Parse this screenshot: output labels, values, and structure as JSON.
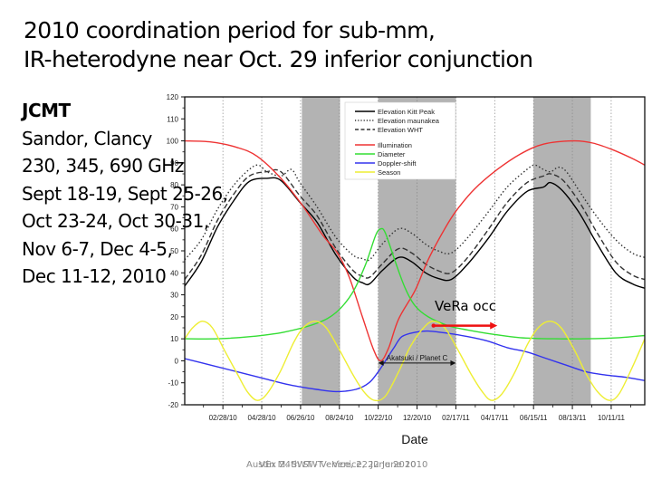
{
  "slide": {
    "title_lines": [
      "2010 coordination period for sub-mm,",
      "IR-heterodyne near Oct. 29 inferior conjunction"
    ],
    "side_text": {
      "heading": "JCMT",
      "lines": [
        "Sandor, Clancy",
        "230, 345, 690 GHz",
        "Sept 18-19, Sept 25-26,",
        "Oct 23-24, Oct 30-31,",
        "Nov 6-7, Dec 4-5,",
        "Dec 11-12, 2010"
      ]
    },
    "footer_texts": [
      "Austin M. SWT - Venice, 22 June 2010",
      "VEx 24th SWT - Venice, 22 June 2010"
    ]
  },
  "chart_data": {
    "type": "line",
    "title": "",
    "xlabel": "Date",
    "ylabel": "",
    "x_units": "days since 01/01/10",
    "xlim": [
      0,
      699
    ],
    "ylim": [
      -20,
      120
    ],
    "y_ticks": [
      -20,
      -10,
      0,
      10,
      20,
      30,
      40,
      50,
      60,
      70,
      80,
      90,
      100,
      110,
      120
    ],
    "x_ticks": [
      {
        "x": 58,
        "label": "02/28/10"
      },
      {
        "x": 117,
        "label": "04/28/10"
      },
      {
        "x": 176,
        "label": "06/26/10"
      },
      {
        "x": 235,
        "label": "08/24/10"
      },
      {
        "x": 294,
        "label": "10/22/10"
      },
      {
        "x": 353,
        "label": "12/20/10"
      },
      {
        "x": 412,
        "label": "02/17/11"
      },
      {
        "x": 471,
        "label": "04/17/11"
      },
      {
        "x": 530,
        "label": "06/15/11"
      },
      {
        "x": 589,
        "label": "08/13/11"
      },
      {
        "x": 648,
        "label": "10/11/11"
      }
    ],
    "grid": "dotted vertical at major ticks",
    "shaded_periods": [
      [
        178,
        236
      ],
      [
        294,
        412
      ],
      [
        530,
        617
      ]
    ],
    "legend_position": "top-center",
    "legend_title_groups": [
      [
        "Elevation Kitt Peak",
        "Elevation maunakea",
        "Elevation WHT"
      ],
      [
        "Illumination",
        "Diameter",
        "Doppler-shift",
        "Season"
      ]
    ],
    "series": [
      {
        "name": "Elevation Kitt Peak",
        "color": "#000000",
        "style": "solid",
        "points": [
          [
            0,
            34
          ],
          [
            25,
            45
          ],
          [
            50,
            61
          ],
          [
            75,
            73
          ],
          [
            98,
            81.5
          ],
          [
            125,
            83
          ],
          [
            146,
            82
          ],
          [
            175,
            72
          ],
          [
            201,
            63
          ],
          [
            230,
            48
          ],
          [
            256,
            38
          ],
          [
            270,
            35.5
          ],
          [
            281,
            35
          ],
          [
            300,
            41
          ],
          [
            325,
            47
          ],
          [
            345,
            45
          ],
          [
            366,
            40
          ],
          [
            385,
            37.5
          ],
          [
            405,
            37
          ],
          [
            430,
            44
          ],
          [
            462,
            56
          ],
          [
            490,
            68
          ],
          [
            520,
            77
          ],
          [
            545,
            79
          ],
          [
            556,
            81
          ],
          [
            575,
            77
          ],
          [
            600,
            67
          ],
          [
            625,
            54
          ],
          [
            655,
            40
          ],
          [
            680,
            35
          ],
          [
            699,
            33
          ]
        ]
      },
      {
        "name": "Elevation maunakea",
        "color": "#333333",
        "style": "dotted",
        "points": [
          [
            0,
            46
          ],
          [
            25,
            55
          ],
          [
            50,
            69
          ],
          [
            75,
            80
          ],
          [
            98,
            87
          ],
          [
            112,
            89
          ],
          [
            125,
            86
          ],
          [
            146,
            84
          ],
          [
            162,
            87
          ],
          [
            175,
            81
          ],
          [
            201,
            70
          ],
          [
            230,
            56
          ],
          [
            256,
            48
          ],
          [
            270,
            46.5
          ],
          [
            281,
            46
          ],
          [
            300,
            53
          ],
          [
            325,
            60
          ],
          [
            345,
            58
          ],
          [
            366,
            53
          ],
          [
            385,
            50
          ],
          [
            405,
            49
          ],
          [
            430,
            56
          ],
          [
            462,
            68
          ],
          [
            490,
            79
          ],
          [
            520,
            87
          ],
          [
            532,
            89
          ],
          [
            545,
            87
          ],
          [
            556,
            86
          ],
          [
            568,
            88
          ],
          [
            580,
            86
          ],
          [
            600,
            77
          ],
          [
            625,
            66
          ],
          [
            655,
            55
          ],
          [
            680,
            49
          ],
          [
            699,
            47
          ]
        ]
      },
      {
        "name": "Elevation WHT",
        "color": "#333333",
        "style": "dashed",
        "points": [
          [
            0,
            37
          ],
          [
            25,
            48
          ],
          [
            50,
            64
          ],
          [
            75,
            76
          ],
          [
            98,
            84
          ],
          [
            125,
            86
          ],
          [
            146,
            86
          ],
          [
            175,
            75
          ],
          [
            201,
            66
          ],
          [
            230,
            51
          ],
          [
            256,
            41
          ],
          [
            270,
            38.5
          ],
          [
            281,
            38
          ],
          [
            300,
            44
          ],
          [
            325,
            51
          ],
          [
            345,
            49
          ],
          [
            366,
            44
          ],
          [
            385,
            41
          ],
          [
            405,
            40
          ],
          [
            430,
            47
          ],
          [
            462,
            60
          ],
          [
            490,
            72
          ],
          [
            520,
            81
          ],
          [
            545,
            84
          ],
          [
            556,
            85
          ],
          [
            575,
            82
          ],
          [
            600,
            72
          ],
          [
            625,
            59
          ],
          [
            655,
            45
          ],
          [
            680,
            39
          ],
          [
            699,
            37
          ]
        ]
      },
      {
        "name": "Illumination",
        "color": "#ee3333",
        "style": "solid",
        "points": [
          [
            0,
            100
          ],
          [
            40,
            99.5
          ],
          [
            80,
            97
          ],
          [
            110,
            93
          ],
          [
            146,
            83
          ],
          [
            178,
            71
          ],
          [
            210,
            57
          ],
          [
            232,
            49
          ],
          [
            250,
            38
          ],
          [
            270,
            20
          ],
          [
            287,
            5
          ],
          [
            298,
            0
          ],
          [
            310,
            6
          ],
          [
            325,
            19
          ],
          [
            350,
            32
          ],
          [
            370,
            46
          ],
          [
            395,
            60
          ],
          [
            412,
            68
          ],
          [
            440,
            78
          ],
          [
            475,
            87
          ],
          [
            510,
            94
          ],
          [
            545,
            98.5
          ],
          [
            590,
            100
          ],
          [
            620,
            99
          ],
          [
            650,
            96
          ],
          [
            680,
            92
          ],
          [
            699,
            89
          ]
        ]
      },
      {
        "name": "Diameter",
        "color": "#33dd33",
        "style": "solid",
        "points": [
          [
            0,
            10
          ],
          [
            50,
            10
          ],
          [
            100,
            11
          ],
          [
            150,
            13
          ],
          [
            200,
            17
          ],
          [
            230,
            22
          ],
          [
            255,
            31
          ],
          [
            275,
            44
          ],
          [
            290,
            57
          ],
          [
            298,
            60
          ],
          [
            305,
            58
          ],
          [
            320,
            45
          ],
          [
            335,
            33
          ],
          [
            350,
            25
          ],
          [
            370,
            20
          ],
          [
            400,
            16
          ],
          [
            430,
            14
          ],
          [
            470,
            12
          ],
          [
            510,
            10.5
          ],
          [
            560,
            10
          ],
          [
            610,
            10
          ],
          [
            660,
            10.5
          ],
          [
            699,
            11.5
          ]
        ]
      },
      {
        "name": "Doppler-shift",
        "color": "#3333ee",
        "style": "solid",
        "points": [
          [
            0,
            1
          ],
          [
            40,
            -2
          ],
          [
            80,
            -5
          ],
          [
            120,
            -8
          ],
          [
            160,
            -11
          ],
          [
            200,
            -13
          ],
          [
            230,
            -14
          ],
          [
            260,
            -13
          ],
          [
            280,
            -10
          ],
          [
            294,
            -5
          ],
          [
            305,
            0
          ],
          [
            318,
            6
          ],
          [
            330,
            11
          ],
          [
            350,
            13
          ],
          [
            370,
            13.5
          ],
          [
            400,
            12.5
          ],
          [
            430,
            11
          ],
          [
            460,
            9
          ],
          [
            490,
            6
          ],
          [
            520,
            4
          ],
          [
            550,
            1
          ],
          [
            580,
            -2
          ],
          [
            610,
            -5
          ],
          [
            640,
            -6.5
          ],
          [
            670,
            -7.5
          ],
          [
            699,
            -9
          ]
        ]
      },
      {
        "name": "Season",
        "color": "#eeee33",
        "style": "solid",
        "points": [
          [
            0,
            10
          ],
          [
            12,
            15
          ],
          [
            27,
            18
          ],
          [
            42,
            15
          ],
          [
            60,
            5
          ],
          [
            80,
            -6
          ],
          [
            95,
            -14
          ],
          [
            110,
            -18
          ],
          [
            125,
            -15
          ],
          [
            145,
            -5
          ],
          [
            165,
            8
          ],
          [
            180,
            15
          ],
          [
            198,
            18
          ],
          [
            215,
            15
          ],
          [
            235,
            5
          ],
          [
            255,
            -6
          ],
          [
            272,
            -14
          ],
          [
            288,
            -18
          ],
          [
            305,
            -16
          ],
          [
            325,
            -5
          ],
          [
            342,
            6
          ],
          [
            360,
            14
          ],
          [
            377,
            18
          ],
          [
            395,
            15
          ],
          [
            415,
            5
          ],
          [
            435,
            -6
          ],
          [
            452,
            -14
          ],
          [
            466,
            -18
          ],
          [
            482,
            -15
          ],
          [
            502,
            -5
          ],
          [
            520,
            7
          ],
          [
            537,
            15
          ],
          [
            555,
            18
          ],
          [
            572,
            15
          ],
          [
            592,
            5
          ],
          [
            610,
            -6
          ],
          [
            627,
            -14
          ],
          [
            645,
            -18
          ],
          [
            660,
            -15
          ],
          [
            680,
            -3
          ],
          [
            699,
            10
          ]
        ]
      }
    ],
    "annotations": [
      {
        "text": "Akatsuki /  Planet C",
        "type": "double-arrow",
        "x_range": [
          294,
          412
        ],
        "y": -1
      },
      {
        "text": "VeRa occ",
        "type": "arrow",
        "x_range": [
          378,
          475
        ],
        "y": 16,
        "color": "#ee1111"
      }
    ]
  }
}
